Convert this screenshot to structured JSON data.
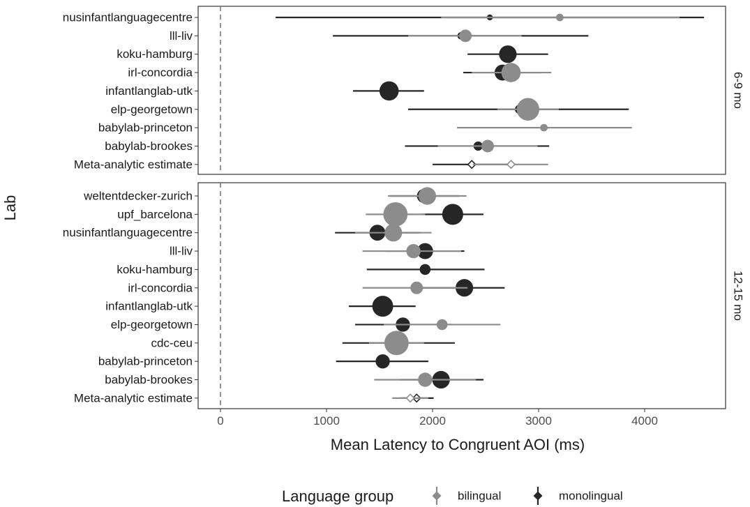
{
  "chart_data": {
    "type": "scatter",
    "subtype": "forest-plot",
    "xlabel": "Mean Latency to Congruent AOI (ms)",
    "ylabel": "Lab",
    "xlim": [
      -200,
      4700
    ],
    "xticks": [
      0,
      1000,
      2000,
      3000,
      4000
    ],
    "reference_line": {
      "x": 0,
      "style": "dashed"
    },
    "grid": false,
    "legend": {
      "title": "Language group",
      "position": "bottom",
      "entries": [
        {
          "key": "bilingual",
          "label": "bilingual",
          "color": "#8c8c8c"
        },
        {
          "key": "monolingual",
          "label": "monolingual",
          "color": "#262626"
        }
      ]
    },
    "panels": [
      {
        "label": "6-9 mo",
        "labs": [
          {
            "name": "nusinfantlanguagecentre",
            "monolingual": {
              "mean": 2540,
              "lo": 520,
              "hi": 4560,
              "size": 1
            },
            "bilingual": {
              "mean": 3200,
              "lo": 2080,
              "hi": 4330,
              "size": 2
            }
          },
          {
            "name": "lll-liv",
            "monolingual": {
              "mean": 2270,
              "lo": 1060,
              "hi": 3470,
              "size": 2
            },
            "bilingual": {
              "mean": 2310,
              "lo": 1770,
              "hi": 2840,
              "size": 5
            }
          },
          {
            "name": "koku-hamburg",
            "monolingual": {
              "mean": 2710,
              "lo": 2330,
              "hi": 3090,
              "size": 8
            }
          },
          {
            "name": "irl-concordia",
            "monolingual": {
              "mean": 2660,
              "lo": 2290,
              "hi": 3030,
              "size": 7
            },
            "bilingual": {
              "mean": 2740,
              "lo": 2370,
              "hi": 3120,
              "size": 9
            }
          },
          {
            "name": "infantlanglab-utk",
            "monolingual": {
              "mean": 1590,
              "lo": 1250,
              "hi": 1920,
              "size": 9
            }
          },
          {
            "name": "elp-georgetown",
            "monolingual": {
              "mean": 2820,
              "lo": 1770,
              "hi": 3850,
              "size": 3
            },
            "bilingual": {
              "mean": 2900,
              "lo": 2610,
              "hi": 3190,
              "size": 11
            }
          },
          {
            "name": "babylab-princeton",
            "bilingual": {
              "mean": 3050,
              "lo": 2230,
              "hi": 3880,
              "size": 2
            }
          },
          {
            "name": "babylab-brookes",
            "monolingual": {
              "mean": 2430,
              "lo": 1740,
              "hi": 3100,
              "size": 3
            },
            "bilingual": {
              "mean": 2520,
              "lo": 2050,
              "hi": 2990,
              "size": 5
            }
          },
          {
            "name": "Meta-analytic estimate",
            "meta": true,
            "monolingual": {
              "mean": 2370,
              "lo": 2000,
              "hi": 2720
            },
            "bilingual": {
              "mean": 2740,
              "lo": 2380,
              "hi": 3090
            }
          }
        ]
      },
      {
        "label": "12-15 mo",
        "labs": [
          {
            "name": "weltentdecker-zurich",
            "monolingual": {
              "mean": 1920,
              "lo": 1600,
              "hi": 2250,
              "size": 6
            },
            "bilingual": {
              "mean": 1950,
              "lo": 1580,
              "hi": 2320,
              "size": 8
            }
          },
          {
            "name": "upf_barcelona",
            "monolingual": {
              "mean": 2190,
              "lo": 1890,
              "hi": 2480,
              "size": 10
            },
            "bilingual": {
              "mean": 1650,
              "lo": 1370,
              "hi": 1930,
              "size": 12
            }
          },
          {
            "name": "nusinfantlanguagecentre",
            "monolingual": {
              "mean": 1480,
              "lo": 1080,
              "hi": 1880,
              "size": 7
            },
            "bilingual": {
              "mean": 1630,
              "lo": 1270,
              "hi": 1990,
              "size": 8
            }
          },
          {
            "name": "lll-liv",
            "monolingual": {
              "mean": 1930,
              "lo": 1560,
              "hi": 2300,
              "size": 7
            },
            "bilingual": {
              "mean": 1820,
              "lo": 1340,
              "hi": 2270,
              "size": 6
            }
          },
          {
            "name": "koku-hamburg",
            "monolingual": {
              "mean": 1930,
              "lo": 1380,
              "hi": 2490,
              "size": 4
            }
          },
          {
            "name": "irl-concordia",
            "monolingual": {
              "mean": 2300,
              "lo": 1900,
              "hi": 2680,
              "size": 8
            },
            "bilingual": {
              "mean": 1850,
              "lo": 1340,
              "hi": 2330,
              "size": 5
            }
          },
          {
            "name": "infantlanglab-utk",
            "monolingual": {
              "mean": 1530,
              "lo": 1210,
              "hi": 1840,
              "size": 10
            }
          },
          {
            "name": "elp-georgetown",
            "monolingual": {
              "mean": 1720,
              "lo": 1270,
              "hi": 2180,
              "size": 6
            },
            "bilingual": {
              "mean": 2090,
              "lo": 1540,
              "hi": 2640,
              "size": 4
            }
          },
          {
            "name": "cdc-ceu",
            "monolingual": {
              "mean": 1670,
              "lo": 1150,
              "hi": 2210,
              "size": 3
            },
            "bilingual": {
              "mean": 1660,
              "lo": 1400,
              "hi": 1920,
              "size": 12
            }
          },
          {
            "name": "babylab-princeton",
            "monolingual": {
              "mean": 1530,
              "lo": 1090,
              "hi": 1960,
              "size": 6
            }
          },
          {
            "name": "babylab-brookes",
            "monolingual": {
              "mean": 2080,
              "lo": 1690,
              "hi": 2480,
              "size": 8
            },
            "bilingual": {
              "mean": 1930,
              "lo": 1450,
              "hi": 2410,
              "size": 6
            }
          },
          {
            "name": "Meta-analytic estimate",
            "meta": true,
            "monolingual": {
              "mean": 1850,
              "lo": 1700,
              "hi": 2010
            },
            "bilingual": {
              "mean": 1790,
              "lo": 1620,
              "hi": 1960
            }
          }
        ]
      }
    ]
  }
}
